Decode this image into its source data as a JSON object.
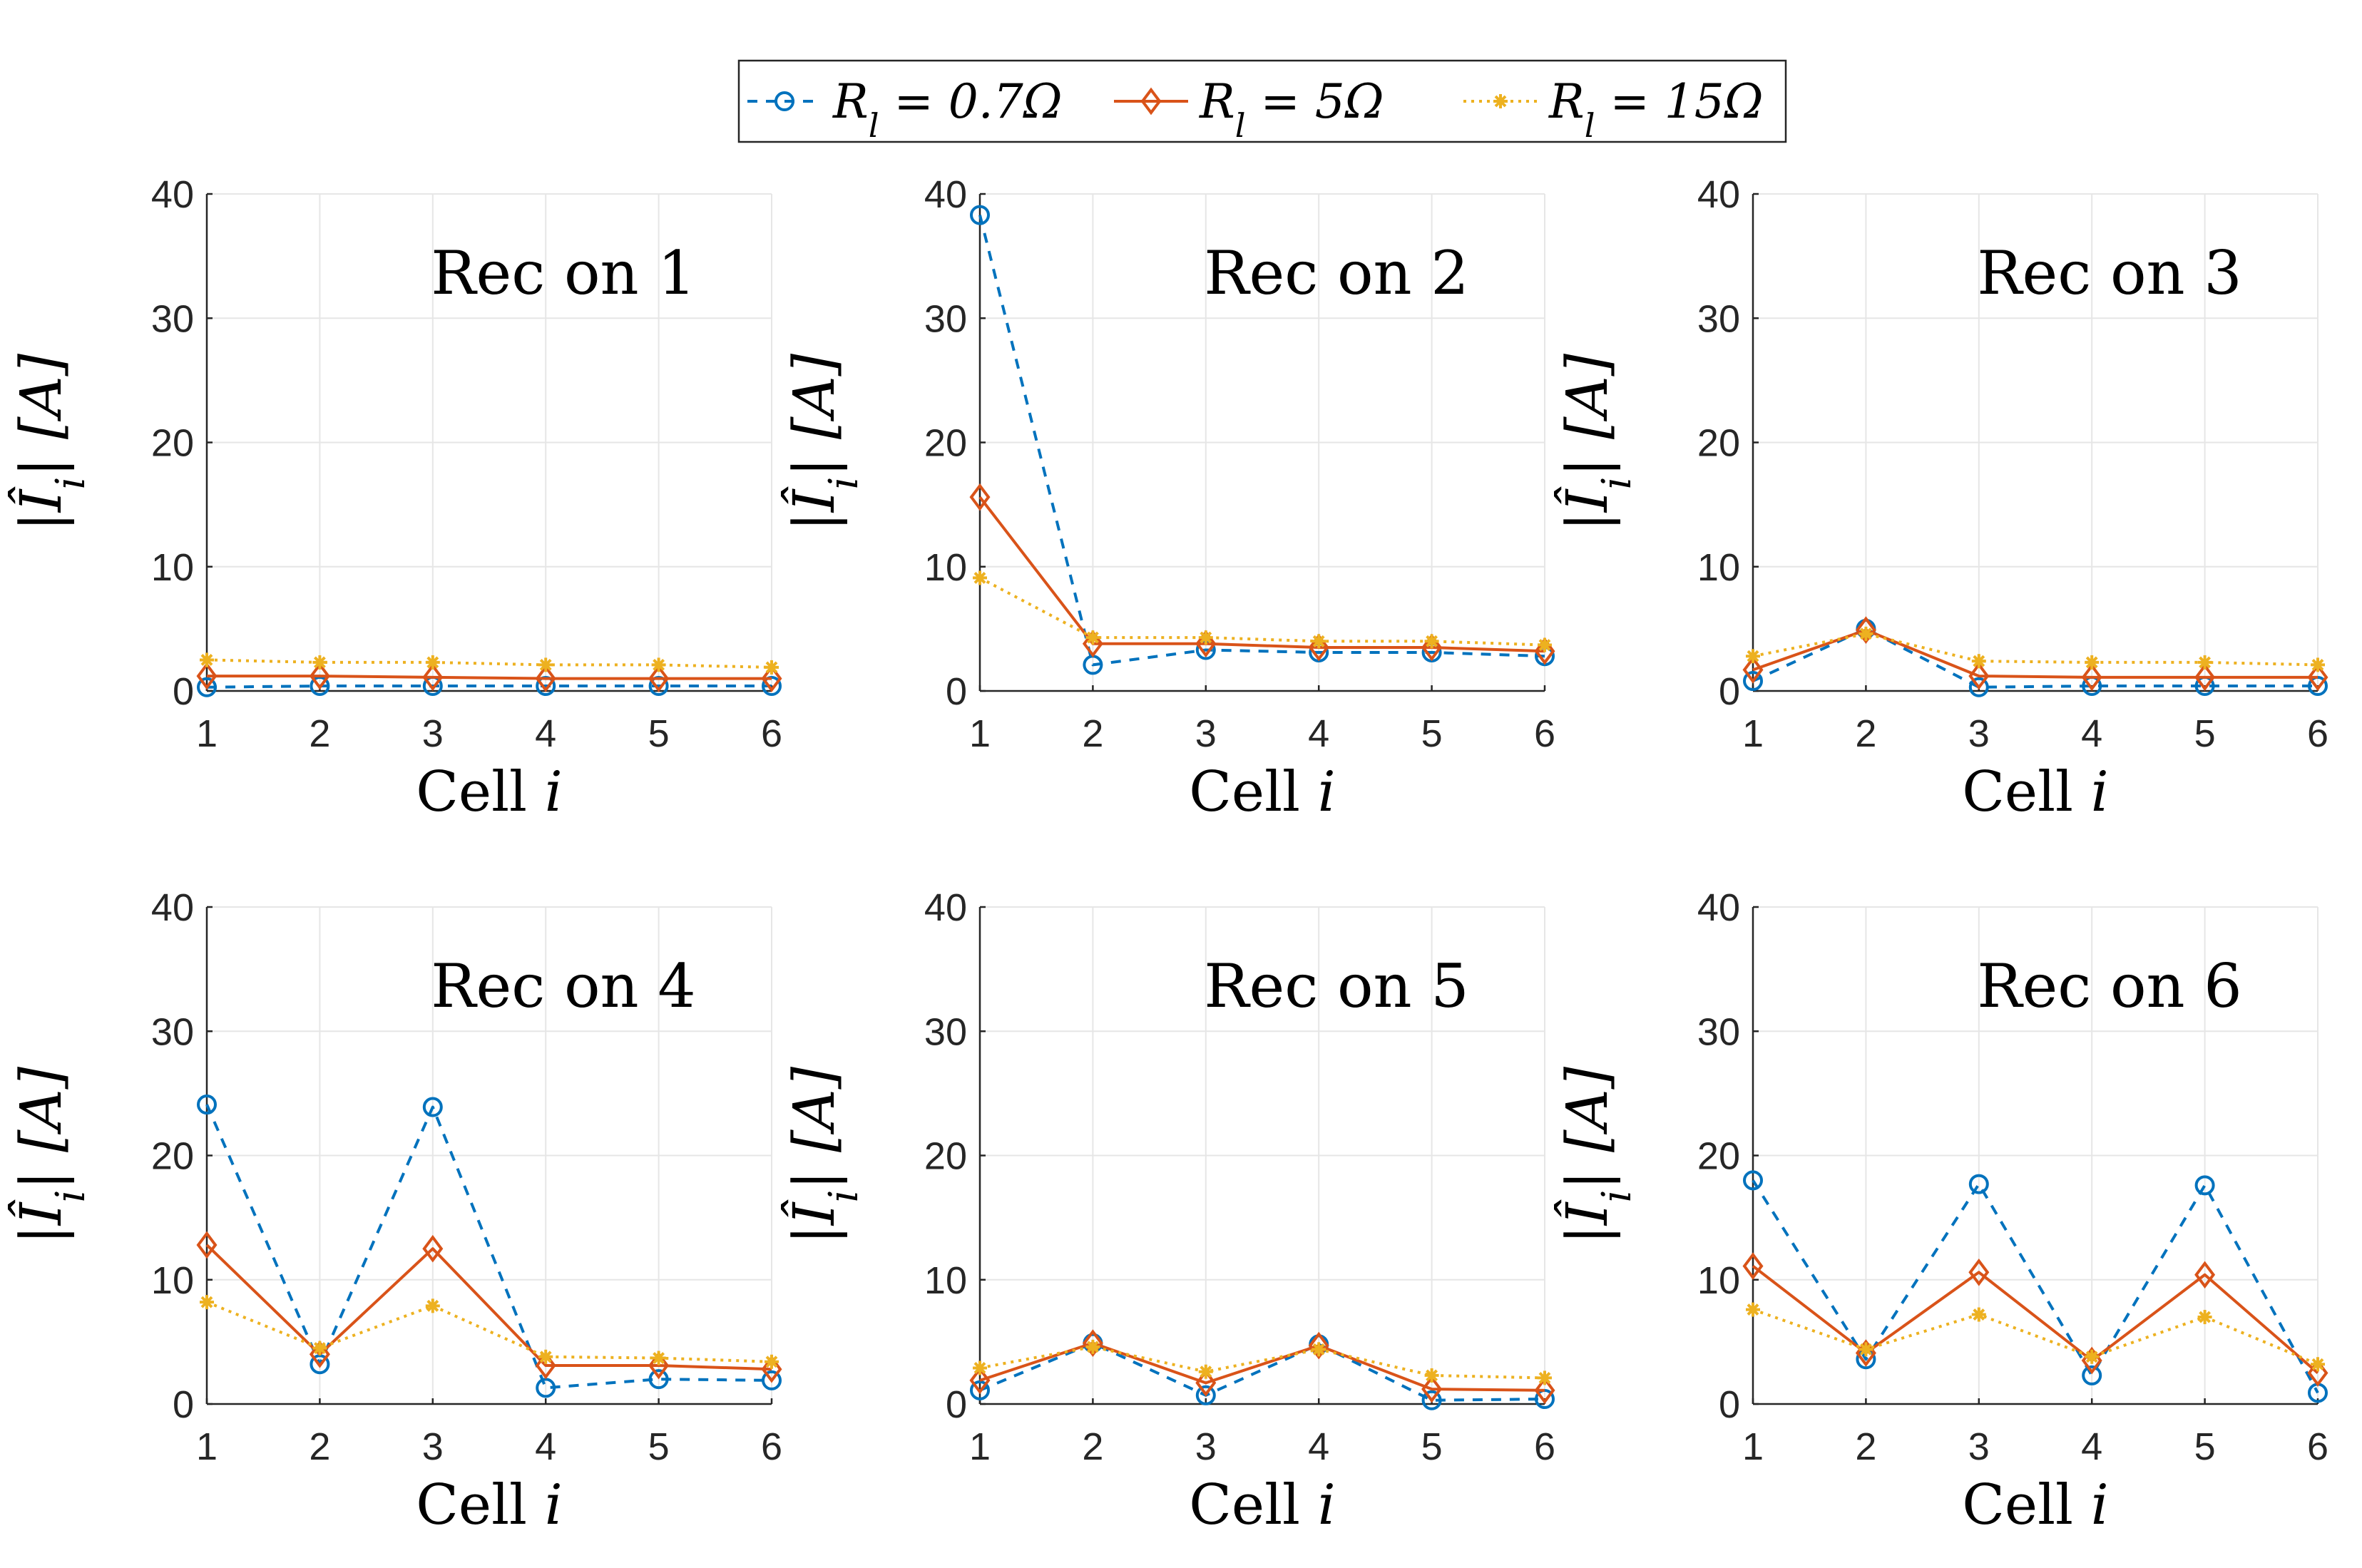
{
  "legend": {
    "entries": [
      {
        "label": "R_l = 0.7Ω",
        "color": "#0072BD",
        "line": "dashed",
        "marker": "circle"
      },
      {
        "label": "R_l = 5Ω",
        "color": "#D95319",
        "line": "solid",
        "marker": "diamond"
      },
      {
        "label": "R_l = 15Ω",
        "color": "#EDB120",
        "line": "dotted",
        "marker": "asterisk"
      }
    ]
  },
  "chart_data": [
    {
      "type": "line",
      "title": "Rec on 1",
      "xlabel": "Cell i",
      "ylabel": "|Î_i| [A]",
      "x": [
        1,
        2,
        3,
        4,
        5,
        6
      ],
      "xlim": [
        1,
        6
      ],
      "ylim": [
        0,
        40
      ],
      "yticks": [
        0,
        10,
        20,
        30,
        40
      ],
      "grid": true,
      "series": [
        {
          "name": "R_l = 0.7Ω",
          "values": [
            0.3,
            0.4,
            0.4,
            0.4,
            0.4,
            0.4
          ]
        },
        {
          "name": "R_l = 5Ω",
          "values": [
            1.2,
            1.2,
            1.1,
            1.0,
            1.0,
            1.0
          ]
        },
        {
          "name": "R_l = 15Ω",
          "values": [
            2.5,
            2.3,
            2.3,
            2.1,
            2.1,
            1.9
          ]
        }
      ]
    },
    {
      "type": "line",
      "title": "Rec on 2",
      "xlabel": "Cell i",
      "ylabel": "|Î_i| [A]",
      "x": [
        1,
        2,
        3,
        4,
        5,
        6
      ],
      "xlim": [
        1,
        6
      ],
      "ylim": [
        0,
        40
      ],
      "yticks": [
        0,
        10,
        20,
        30,
        40
      ],
      "grid": true,
      "series": [
        {
          "name": "R_l = 0.7Ω",
          "values": [
            38.3,
            2.1,
            3.3,
            3.1,
            3.1,
            2.8
          ]
        },
        {
          "name": "R_l = 5Ω",
          "values": [
            15.6,
            3.8,
            3.8,
            3.5,
            3.5,
            3.2
          ]
        },
        {
          "name": "R_l = 15Ω",
          "values": [
            9.1,
            4.3,
            4.3,
            4.0,
            4.0,
            3.7
          ]
        }
      ]
    },
    {
      "type": "line",
      "title": "Rec on 3",
      "xlabel": "Cell i",
      "ylabel": "|Î_i| [A]",
      "x": [
        1,
        2,
        3,
        4,
        5,
        6
      ],
      "xlim": [
        1,
        6
      ],
      "ylim": [
        0,
        40
      ],
      "yticks": [
        0,
        10,
        20,
        30,
        40
      ],
      "grid": true,
      "series": [
        {
          "name": "R_l = 0.7Ω",
          "values": [
            0.8,
            5.0,
            0.3,
            0.4,
            0.4,
            0.4
          ]
        },
        {
          "name": "R_l = 5Ω",
          "values": [
            1.7,
            4.9,
            1.2,
            1.1,
            1.1,
            1.1
          ]
        },
        {
          "name": "R_l = 15Ω",
          "values": [
            2.8,
            4.6,
            2.4,
            2.3,
            2.3,
            2.1
          ]
        }
      ]
    },
    {
      "type": "line",
      "title": "Rec on 4",
      "xlabel": "Cell i",
      "ylabel": "|Î_i| [A]",
      "x": [
        1,
        2,
        3,
        4,
        5,
        6
      ],
      "xlim": [
        1,
        6
      ],
      "ylim": [
        0,
        40
      ],
      "yticks": [
        0,
        10,
        20,
        30,
        40
      ],
      "grid": true,
      "series": [
        {
          "name": "R_l = 0.7Ω",
          "values": [
            24.1,
            3.2,
            23.9,
            1.3,
            2.0,
            1.9
          ]
        },
        {
          "name": "R_l = 5Ω",
          "values": [
            12.8,
            4.0,
            12.5,
            3.1,
            3.1,
            2.8
          ]
        },
        {
          "name": "R_l = 15Ω",
          "values": [
            8.2,
            4.5,
            7.9,
            3.8,
            3.7,
            3.4
          ]
        }
      ]
    },
    {
      "type": "line",
      "title": "Rec on 5",
      "xlabel": "Cell i",
      "ylabel": "|Î_i| [A]",
      "x": [
        1,
        2,
        3,
        4,
        5,
        6
      ],
      "xlim": [
        1,
        6
      ],
      "ylim": [
        0,
        40
      ],
      "yticks": [
        0,
        10,
        20,
        30,
        40
      ],
      "grid": true,
      "series": [
        {
          "name": "R_l = 0.7Ω",
          "values": [
            1.1,
            4.9,
            0.7,
            4.8,
            0.3,
            0.4
          ]
        },
        {
          "name": "R_l = 5Ω",
          "values": [
            1.9,
            4.9,
            1.7,
            4.7,
            1.2,
            1.1
          ]
        },
        {
          "name": "R_l = 15Ω",
          "values": [
            2.9,
            4.6,
            2.6,
            4.4,
            2.3,
            2.1
          ]
        }
      ]
    },
    {
      "type": "line",
      "title": "Rec on 6",
      "xlabel": "Cell i",
      "ylabel": "|Î_i| [A]",
      "x": [
        1,
        2,
        3,
        4,
        5,
        6
      ],
      "xlim": [
        1,
        6
      ],
      "ylim": [
        0,
        40
      ],
      "yticks": [
        0,
        10,
        20,
        30,
        40
      ],
      "grid": true,
      "series": [
        {
          "name": "R_l = 0.7Ω",
          "values": [
            18.0,
            3.6,
            17.7,
            2.3,
            17.6,
            0.9
          ]
        },
        {
          "name": "R_l = 5Ω",
          "values": [
            11.1,
            4.1,
            10.6,
            3.5,
            10.4,
            2.5
          ]
        },
        {
          "name": "R_l = 15Ω",
          "values": [
            7.6,
            4.4,
            7.2,
            3.8,
            7.0,
            3.2
          ]
        }
      ]
    }
  ]
}
